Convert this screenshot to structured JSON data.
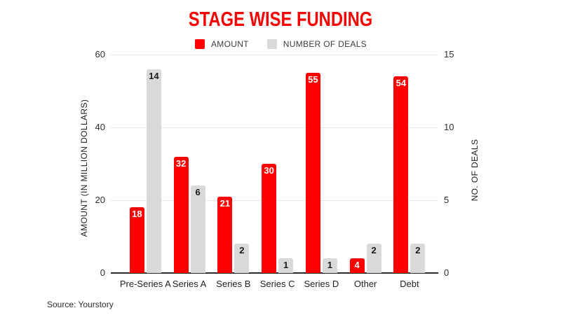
{
  "title": "STAGE WISE FUNDING",
  "title_color": "#fb0000",
  "source": "Source: Yourstory",
  "chart_data": {
    "type": "bar",
    "title": "STAGE WISE FUNDING",
    "categories": [
      "Pre-Series A",
      "Series A",
      "Series B",
      "Series C",
      "Series D",
      "Other",
      "Debt"
    ],
    "series": [
      {
        "name": "AMOUNT",
        "axis": "left",
        "color": "#fe0000",
        "label_color": "#ffffff",
        "values": [
          18,
          32,
          21,
          30,
          55,
          4,
          54
        ]
      },
      {
        "name": "NUMBER OF DEALS",
        "axis": "right",
        "color": "#d9d9d9",
        "label_color": "#1a1a1a",
        "values": [
          14,
          6,
          2,
          1,
          1,
          2,
          2
        ]
      }
    ],
    "left_axis": {
      "label": "AMOUNT (IN MILLION DOLLARS)",
      "ticks": [
        0,
        20,
        40,
        60
      ],
      "max": 60
    },
    "right_axis": {
      "label": "NO. OF DEALS",
      "ticks": [
        0,
        5,
        10,
        15
      ],
      "max": 15
    },
    "grid": true,
    "legend_position": "top"
  }
}
